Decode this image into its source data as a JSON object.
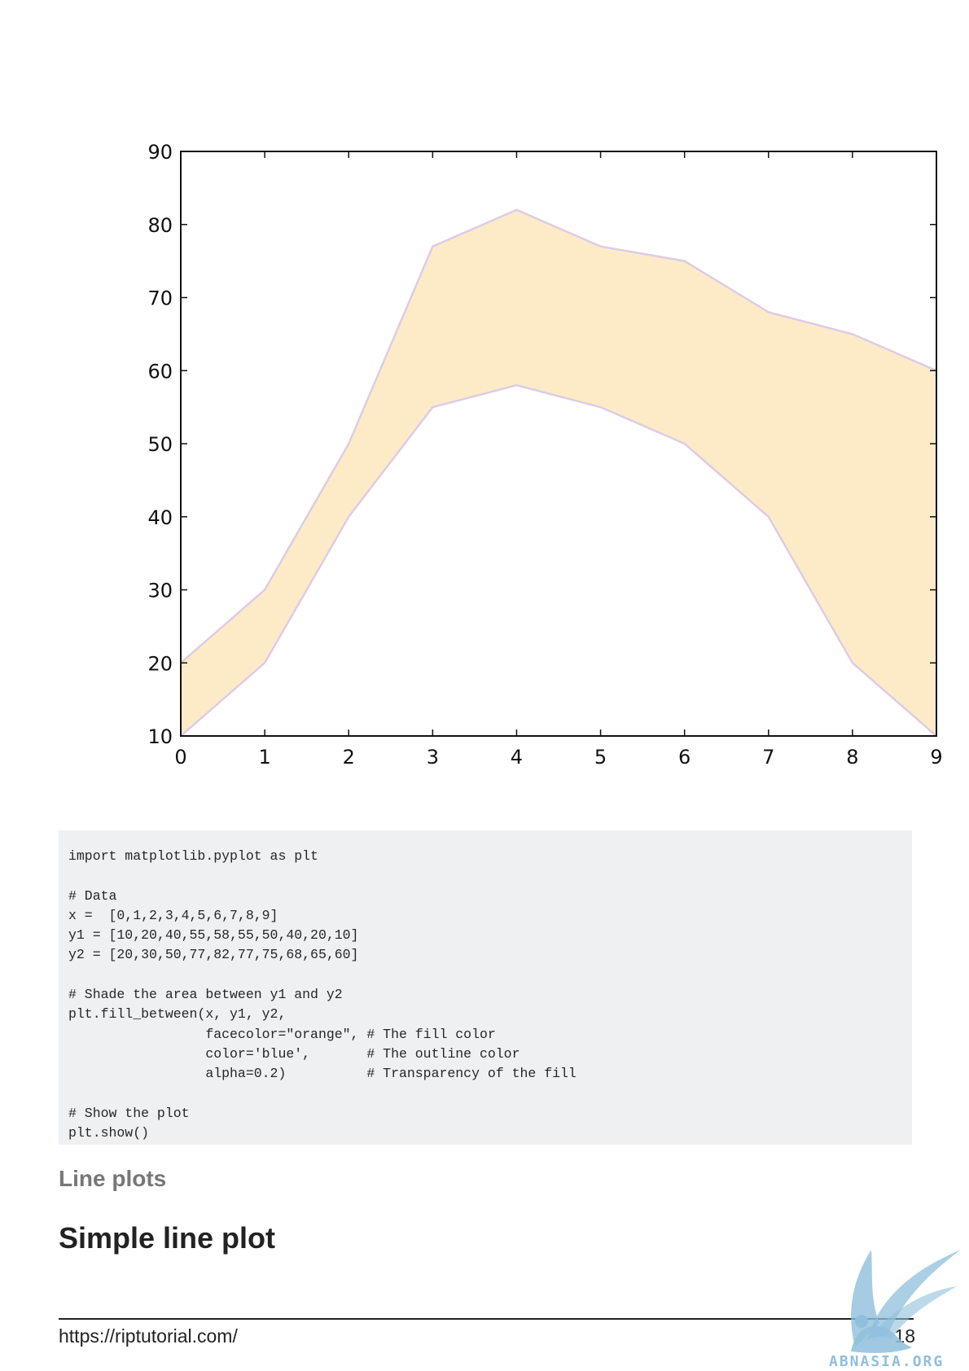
{
  "chart_data": {
    "type": "area",
    "x": [
      0,
      1,
      2,
      3,
      4,
      5,
      6,
      7,
      8,
      9
    ],
    "series": [
      {
        "values": [
          10,
          20,
          40,
          55,
          58,
          55,
          50,
          40,
          20,
          10
        ]
      },
      {
        "values": [
          20,
          30,
          50,
          77,
          82,
          77,
          75,
          68,
          65,
          60
        ]
      }
    ],
    "fill_color": "#fdebc8",
    "line_color": "#ddcce6",
    "xlim": [
      0,
      9
    ],
    "ylim": [
      10,
      90
    ],
    "xticks": [
      "0",
      "1",
      "2",
      "3",
      "4",
      "5",
      "6",
      "7",
      "8",
      "9"
    ],
    "yticks": [
      "10",
      "20",
      "30",
      "40",
      "50",
      "60",
      "70",
      "80",
      "90"
    ],
    "title": "",
    "xlabel": "",
    "ylabel": "",
    "grid": false
  },
  "code": {
    "lines": [
      "import matplotlib.pyplot as plt",
      "",
      "# Data",
      "x =  [0,1,2,3,4,5,6,7,8,9]",
      "y1 = [10,20,40,55,58,55,50,40,20,10]",
      "y2 = [20,30,50,77,82,77,75,68,65,60]",
      "",
      "# Shade the area between y1 and y2",
      "plt.fill_between(x, y1, y2,",
      "                 facecolor=\"orange\", # The fill color",
      "                 color='blue',       # The outline color",
      "                 alpha=0.2)          # Transparency of the fill",
      "",
      "# Show the plot",
      "plt.show()"
    ]
  },
  "headings": {
    "section": "Line plots",
    "sub": "Simple line plot"
  },
  "footer": {
    "url": "https://riptutorial.com/",
    "page": "18"
  },
  "watermark": {
    "text": "ABNASIA.ORG",
    "icon": "winged-griffin-logo",
    "color": "#8fbfdc"
  }
}
